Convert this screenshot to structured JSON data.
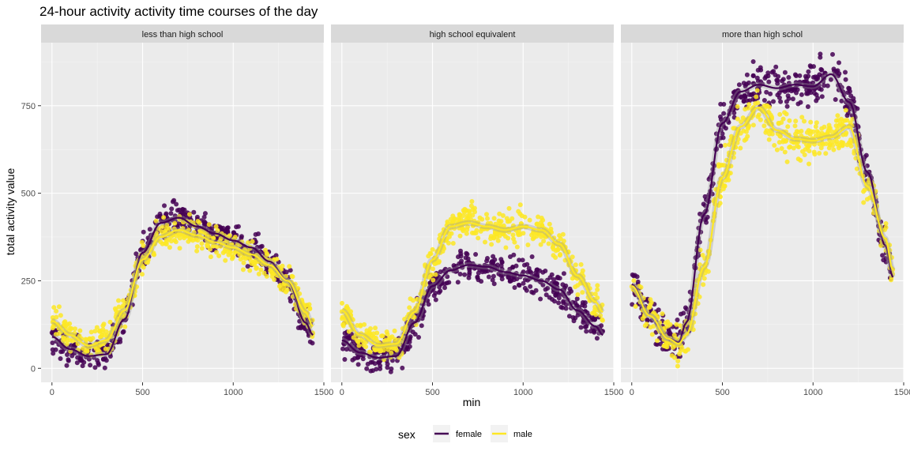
{
  "chart_data": {
    "type": "scatter",
    "title": "24-hour activity activity time courses of the day",
    "xlabel": "min",
    "ylabel": "total activity value",
    "xlim": [
      -60,
      1500
    ],
    "ylim": [
      -40,
      930
    ],
    "x_ticks": [
      0,
      500,
      1000,
      1500
    ],
    "y_ticks": [
      0,
      250,
      500,
      750
    ],
    "grid": true,
    "legend": {
      "title": "sex",
      "placement": "bottom",
      "entries": [
        {
          "label": "female",
          "color": "#440154"
        },
        {
          "label": "male",
          "color": "#fde725"
        }
      ]
    },
    "panels": [
      {
        "label": "less than high school",
        "series": [
          {
            "name": "female",
            "color": "#440154",
            "x": [
              0,
              100,
              200,
              300,
              400,
              500,
              600,
              700,
              800,
              900,
              1000,
              1100,
              1200,
              1300,
              1400,
              1440
            ],
            "y": [
              90,
              55,
              35,
              40,
              140,
              330,
              415,
              430,
              405,
              385,
              365,
              345,
              305,
              250,
              130,
              95
            ],
            "spread": 22
          },
          {
            "name": "male",
            "color": "#fde725",
            "x": [
              0,
              100,
              200,
              300,
              400,
              500,
              600,
              700,
              800,
              900,
              1000,
              1100,
              1200,
              1300,
              1400,
              1440
            ],
            "y": [
              135,
              95,
              65,
              80,
              165,
              310,
              375,
              395,
              380,
              360,
              345,
              325,
              295,
              250,
              160,
              120
            ],
            "spread": 22
          }
        ]
      },
      {
        "label": "high school equivalent",
        "series": [
          {
            "name": "female",
            "color": "#440154",
            "x": [
              0,
              100,
              200,
              300,
              400,
              500,
              600,
              700,
              800,
              900,
              1000,
              1100,
              1200,
              1300,
              1400,
              1440
            ],
            "y": [
              80,
              45,
              30,
              35,
              130,
              235,
              280,
              295,
              290,
              275,
              265,
              250,
              225,
              165,
              120,
              95
            ],
            "spread": 22
          },
          {
            "name": "male",
            "color": "#fde725",
            "x": [
              0,
              100,
              200,
              300,
              400,
              500,
              600,
              700,
              800,
              900,
              1000,
              1100,
              1200,
              1300,
              1400,
              1440
            ],
            "y": [
              165,
              95,
              65,
              70,
              160,
              310,
              405,
              415,
              405,
              395,
              405,
              395,
              355,
              265,
              190,
              160
            ],
            "spread": 22
          }
        ]
      },
      {
        "label": "more than high schol",
        "series": [
          {
            "name": "female",
            "color": "#440154",
            "x": [
              0,
              100,
              200,
              260,
              300,
              400,
              500,
              600,
              700,
              800,
              900,
              1000,
              1100,
              1200,
              1300,
              1400,
              1440
            ],
            "y": [
              240,
              150,
              85,
              75,
              130,
              440,
              700,
              790,
              810,
              800,
              810,
              805,
              840,
              760,
              560,
              350,
              260
            ],
            "spread": 28
          },
          {
            "name": "male",
            "color": "#fde725",
            "x": [
              0,
              100,
              200,
              260,
              300,
              400,
              500,
              600,
              700,
              800,
              900,
              1000,
              1100,
              1200,
              1300,
              1400,
              1440
            ],
            "y": [
              235,
              150,
              85,
              70,
              95,
              290,
              545,
              690,
              745,
              680,
              655,
              650,
              660,
              690,
              520,
              370,
              280
            ],
            "spread": 28
          }
        ]
      }
    ]
  }
}
